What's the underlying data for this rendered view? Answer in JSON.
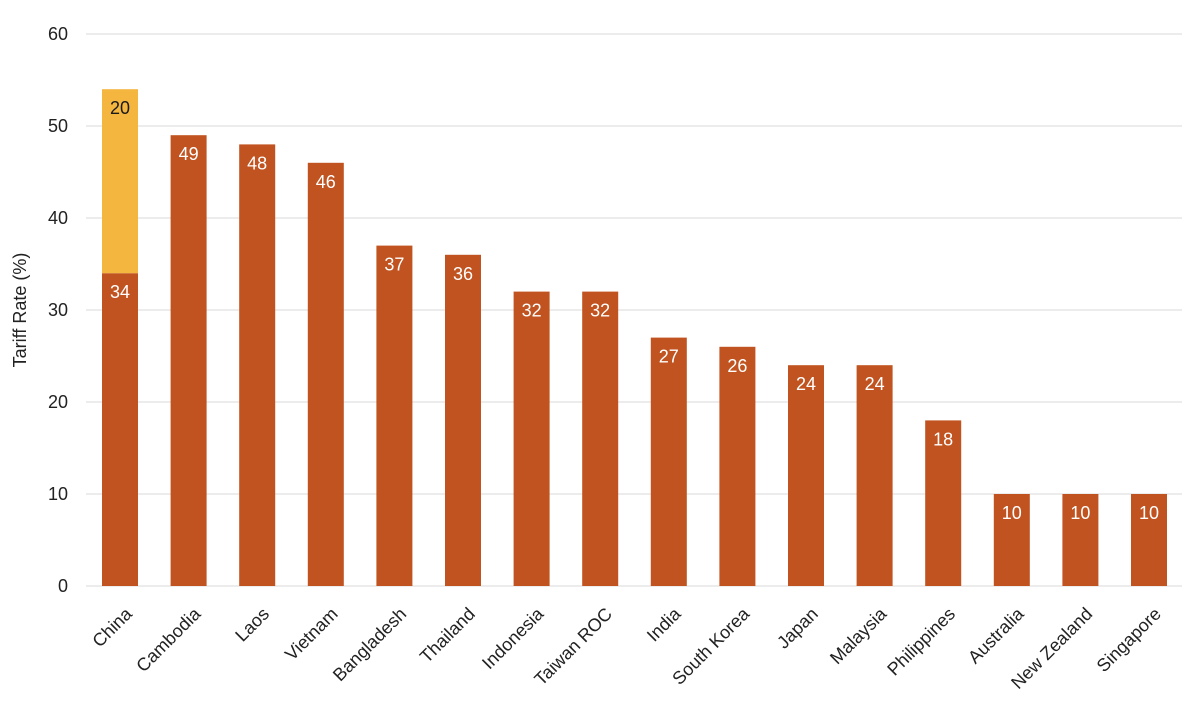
{
  "chart_data": {
    "type": "bar",
    "stacked": true,
    "title": "",
    "xlabel": "",
    "ylabel": "Tariff Rate (%)",
    "ylim": [
      0,
      60
    ],
    "yticks": [
      0,
      10,
      20,
      30,
      40,
      50,
      60
    ],
    "grid": true,
    "categories": [
      "China",
      "Cambodia",
      "Laos",
      "Vietnam",
      "Bangladesh",
      "Thailand",
      "Indonesia",
      "Taiwan ROC",
      "India",
      "South Korea",
      "Japan",
      "Malaysia",
      "Philippines",
      "Australia",
      "New Zealand",
      "Singapore"
    ],
    "series": [
      {
        "values": [
          34,
          49,
          48,
          46,
          37,
          36,
          32,
          32,
          27,
          26,
          24,
          24,
          18,
          10,
          10,
          10
        ],
        "color": "#c0531f",
        "label_color": "#ffffff"
      },
      {
        "values": [
          20,
          0,
          0,
          0,
          0,
          0,
          0,
          0,
          0,
          0,
          0,
          0,
          0,
          0,
          0,
          0
        ],
        "color": "#f5b63f",
        "label_color": "#1a1a1a"
      }
    ]
  }
}
